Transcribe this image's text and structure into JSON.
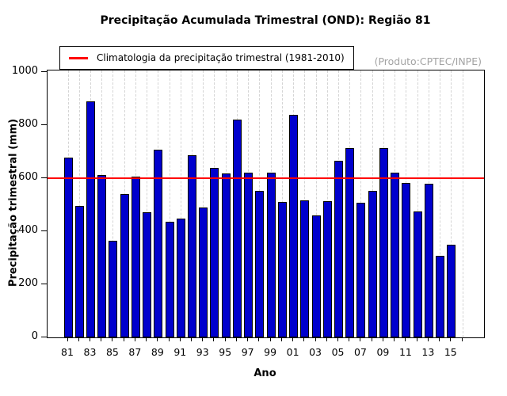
{
  "title": "Precipitação Acumulada Trimestral (OND): Região 81",
  "produto_label": "(Produto:CPTEC/INPE)",
  "legend": {
    "label": "Climatologia da precipitação trimestral (1981-2010)",
    "line_color": "#ff0000",
    "position": "top-left"
  },
  "chart_data": {
    "type": "bar",
    "title": "Precipitação Acumulada Trimestral (OND): Região 81",
    "xlabel": "Ano",
    "ylabel": "Precipitação trimestral (mm)",
    "ylim": [
      0,
      1010
    ],
    "yticks": [
      0,
      200,
      400,
      600,
      800,
      1000
    ],
    "grid": "vertical-dashed-every-year",
    "legend_position": "top-left",
    "bar_color": "#0000cd",
    "bar_border_color": "#000000",
    "climatology_value": 601,
    "climatology_color": "#ff0000",
    "years": [
      1981,
      1982,
      1983,
      1984,
      1985,
      1986,
      1987,
      1988,
      1989,
      1990,
      1991,
      1992,
      1993,
      1994,
      1995,
      1996,
      1997,
      1998,
      1999,
      2000,
      2001,
      2002,
      2003,
      2004,
      2005,
      2006,
      2007,
      2008,
      2009,
      2010,
      2011,
      2012,
      2013,
      2014,
      2015
    ],
    "values": [
      678,
      497,
      891,
      612,
      363,
      539,
      605,
      473,
      707,
      435,
      447,
      688,
      489,
      638,
      617,
      820,
      622,
      553,
      622,
      510,
      838,
      517,
      459,
      512,
      667,
      712,
      507,
      553,
      713,
      622,
      582,
      475,
      578,
      308,
      349
    ],
    "x_tick_labels": [
      "81",
      "83",
      "85",
      "87",
      "89",
      "91",
      "93",
      "95",
      "97",
      "99",
      "01",
      "03",
      "05",
      "07",
      "09",
      "11",
      "13",
      "15"
    ],
    "x_axis_last_tick_year": 2016
  }
}
